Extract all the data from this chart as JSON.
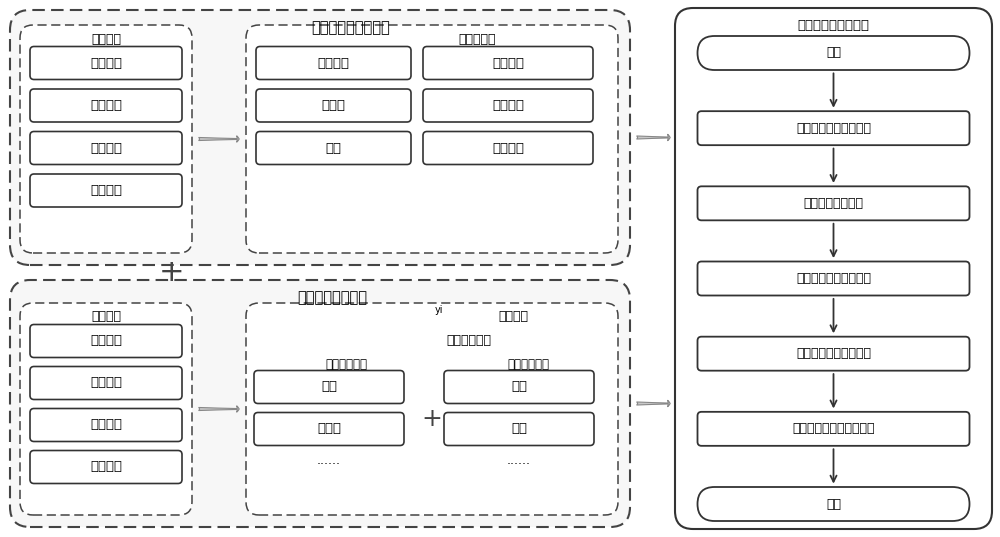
{
  "bg_color": "#ffffff",
  "border_color": "#555555",
  "dashed_color": "#555555",
  "box_color": "#ffffff",
  "text_color": "#000000",
  "title_top_left": "新能源变电站云平台",
  "title_bottom_left": "新能源云平台检测",
  "label_beijian": "被检设备",
  "label_beice": "被测模型库",
  "label_jiance_nr": "检测内容",
  "label_jiance_gn": "检测功能",
  "label_hemo": "耦合模型检测",
  "items_left_top": [
    "风力电源",
    "光伏电源",
    "储能电源",
    "蓄能电源"
  ],
  "items_mid_top_left": [
    "风机叶片",
    "光伏板",
    "电池"
  ],
  "items_mid_top_right": [
    "保护装置",
    "测控装置",
    "解列装置"
  ],
  "items_left_bot": [
    "差异检测",
    "标准检测",
    "模型训练",
    "模型服务"
  ],
  "items_mid_bot_left_label": "一次设备模型",
  "items_mid_bot_left": [
    "刀闸",
    "断路器",
    "......"
  ],
  "items_mid_bot_right_label": "二次设备模型",
  "items_mid_bot_right": [
    "测控",
    "保护",
    "......"
  ],
  "flow_title": "模型标准化检测流程",
  "flow_steps": [
    "开始",
    "构建综合评价指标体系",
    "分析指标计算方法",
    "确定关键评价指标权重",
    "计算各指标及整体得分",
    "得出综合评价结果和结论",
    "结束"
  ],
  "yi_label": "yi"
}
